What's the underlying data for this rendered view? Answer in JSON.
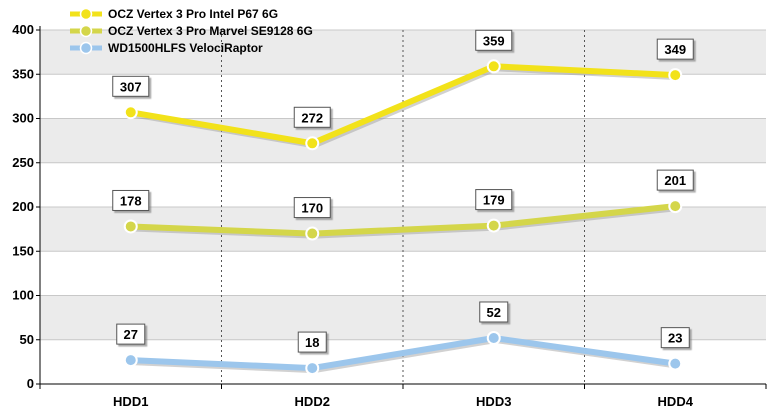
{
  "chart_data": {
    "type": "line",
    "title": "",
    "xlabel": "",
    "ylabel": "",
    "categories": [
      "HDD1",
      "HDD2",
      "HDD3",
      "HDD4"
    ],
    "ylim": [
      0,
      400
    ],
    "yticks": [
      0,
      50,
      100,
      150,
      200,
      250,
      300,
      350,
      400
    ],
    "grid": true,
    "legend_position": "top-left",
    "series": [
      {
        "name": "OCZ Vertex 3 Pro Intel P67 6G",
        "values": [
          307,
          272,
          359,
          349
        ],
        "color": "#f2e21a"
      },
      {
        "name": "OCZ Vertex 3 Pro Marvel SE9128 6G",
        "values": [
          178,
          170,
          179,
          201
        ],
        "color": "#d4d64a"
      },
      {
        "name": "WD1500HLFS VelociRaptor",
        "values": [
          27,
          18,
          52,
          23
        ],
        "color": "#9cc6ec"
      }
    ]
  }
}
